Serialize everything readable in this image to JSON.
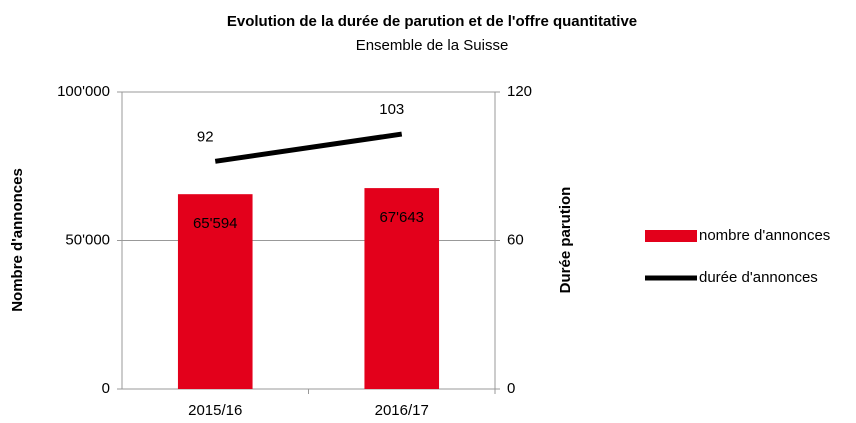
{
  "chart_data": {
    "type": "bar",
    "title": "Evolution de la durée de parution et de l'offre quantitative",
    "subtitle": "Ensemble de la Suisse",
    "ylabel": "Nombre d'annonces",
    "y2label": "Durée parution",
    "categories": [
      "2015/16",
      "2016/17"
    ],
    "series": [
      {
        "name": "nombre d'annonces",
        "type": "bar",
        "color": "#e3001b",
        "values": [
          65594,
          67643
        ],
        "value_labels": [
          "65'594",
          "67'643"
        ]
      },
      {
        "name": "durée d'annonces",
        "type": "line",
        "axis": "y2",
        "color": "#000000",
        "values": [
          92,
          103
        ]
      }
    ],
    "ylim": [
      0,
      100000
    ],
    "yticks": [
      0,
      {
        "value": 50000,
        "label": "50'000"
      },
      {
        "value": 100000,
        "label": "100'000"
      }
    ],
    "y2lim": [
      0,
      120
    ],
    "y2ticks": [
      0,
      60,
      120
    ],
    "grid": true,
    "legend": "right"
  }
}
